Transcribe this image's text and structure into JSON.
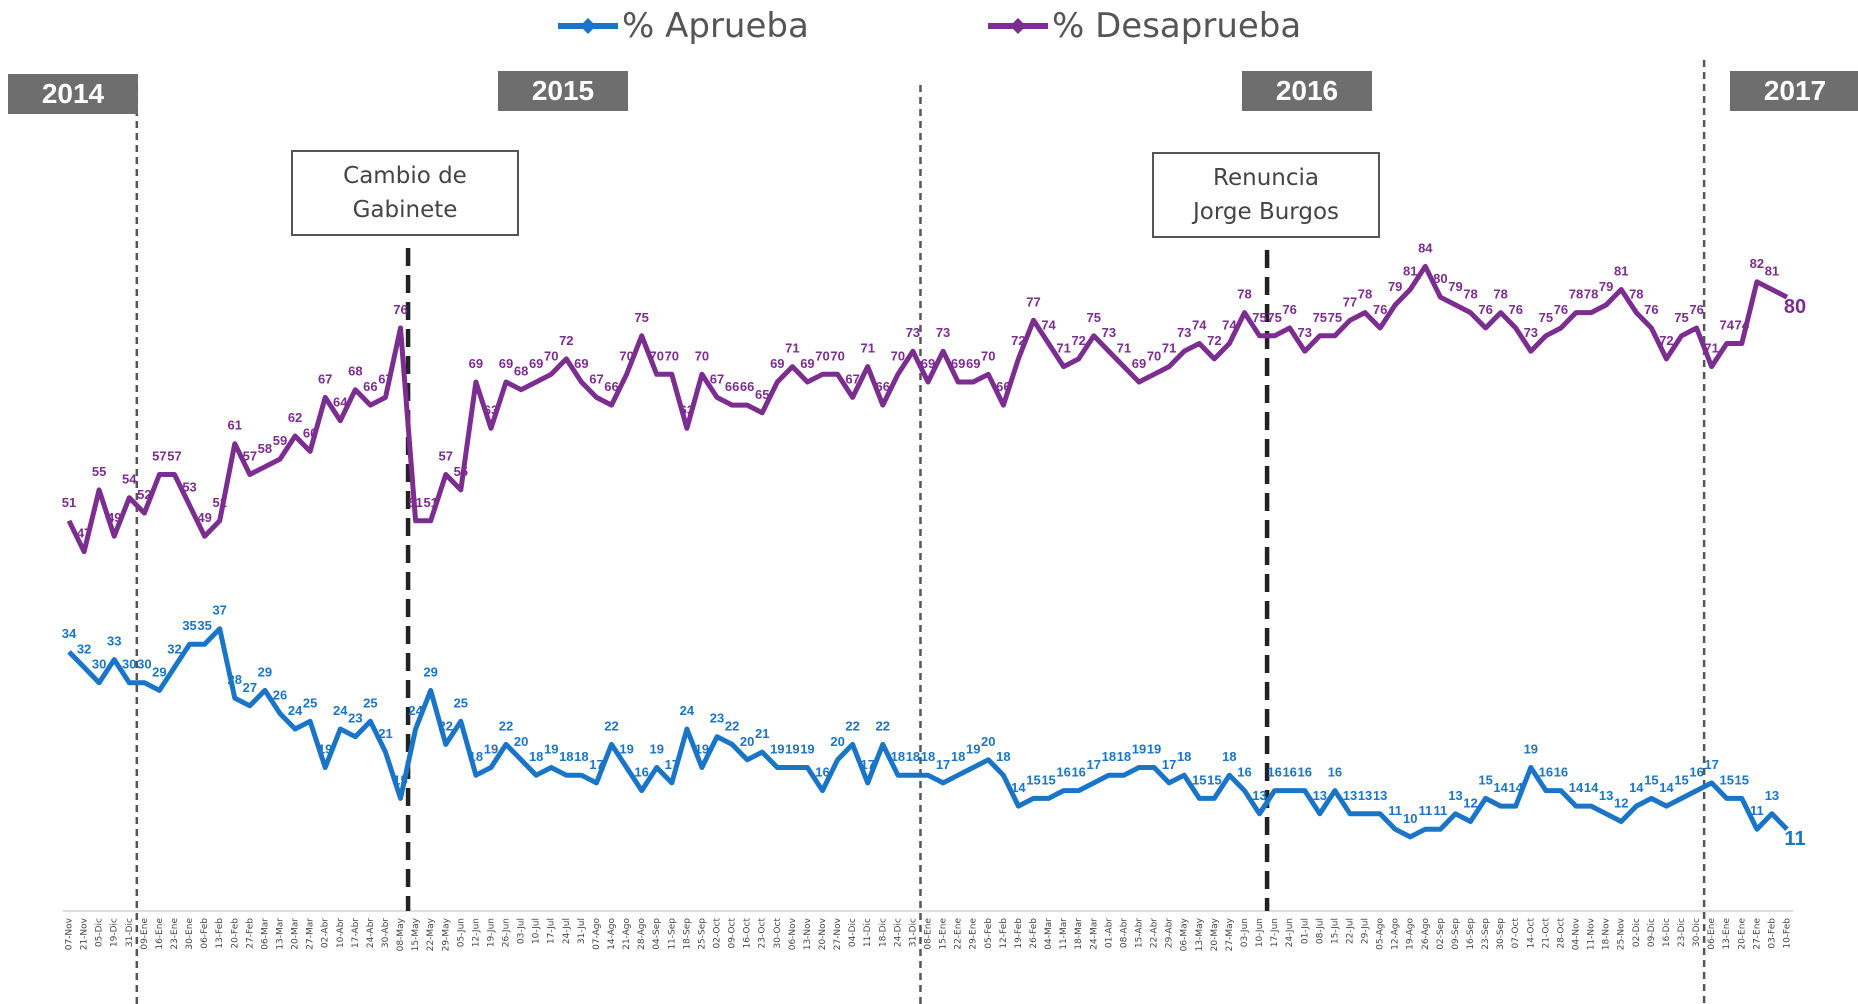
{
  "chart_data": {
    "type": "line",
    "categories": [
      "07-Nov",
      "21-Nov",
      "05-Dic",
      "19-Dic",
      "31-Dic",
      "09-Ene",
      "16-Ene",
      "23-Ene",
      "30-Ene",
      "06-Feb",
      "13-Feb",
      "20-Feb",
      "27-Feb",
      "06-Mar",
      "13-Mar",
      "20-Mar",
      "27-Mar",
      "02-Abr",
      "10-Abr",
      "17-Abr",
      "24-Abr",
      "30-Abr",
      "08-May",
      "15-May",
      "22-May",
      "29-May",
      "05-Jun",
      "12-Jun",
      "19-Jun",
      "26-Jun",
      "03-Jul",
      "10-Jul",
      "17-Jul",
      "24-Jul",
      "31-Jul",
      "07-Ago",
      "14-Ago",
      "21-Ago",
      "28-Ago",
      "04-Sep",
      "11-Sep",
      "18-Sep",
      "25-Sep",
      "02-Oct",
      "09-Oct",
      "16-Oct",
      "23-Oct",
      "30-Oct",
      "06-Nov",
      "13-Nov",
      "20-Nov",
      "27-Nov",
      "04-Dic",
      "11-Dic",
      "18-Dic",
      "24-Dic",
      "31-Dic",
      "08-Ene",
      "15-Ene",
      "22-Ene",
      "29-Ene",
      "05-Feb",
      "12-Feb",
      "19-Feb",
      "26-Feb",
      "04-Mar",
      "11-Mar",
      "18-Mar",
      "24-Mar",
      "01-Abr",
      "08-Abr",
      "15-Abr",
      "22-Abr",
      "29-Abr",
      "06-May",
      "13-May",
      "20-May",
      "27-May",
      "03-Jun",
      "10-Jun",
      "17-Jun",
      "24-Jun",
      "01-Jul",
      "08-Jul",
      "15-Jul",
      "22-Jul",
      "29-Jul",
      "05-Ago",
      "12-Ago",
      "19-Ago",
      "26-Ago",
      "02-Sep",
      "09-Sep",
      "16-Sep",
      "23-Sep",
      "30-Sep",
      "07-Oct",
      "14-Oct",
      "21-Oct",
      "28-Oct",
      "04-Nov",
      "11-Nov",
      "18-Nov",
      "25-Nov",
      "02-Dic",
      "09-Dic",
      "16-Dic",
      "23-Dic",
      "30-Dic",
      "06-Ene",
      "13-Ene",
      "20-Ene",
      "27-Ene",
      "03-Feb",
      "10-Feb"
    ],
    "series": [
      {
        "name": "% Aprueba",
        "color": "#1a75c7",
        "values": [
          34,
          32,
          30,
          33,
          30,
          30,
          29,
          32,
          35,
          35,
          37,
          28,
          27,
          29,
          26,
          24,
          25,
          19,
          24,
          23,
          25,
          21,
          15,
          24,
          29,
          22,
          25,
          18,
          19,
          22,
          20,
          18,
          19,
          18,
          18,
          17,
          22,
          19,
          16,
          19,
          17,
          24,
          19,
          23,
          22,
          20,
          21,
          19,
          19,
          19,
          16,
          20,
          22,
          17,
          22,
          18,
          18,
          18,
          17,
          18,
          19,
          20,
          18,
          14,
          15,
          15,
          16,
          16,
          17,
          18,
          18,
          19,
          19,
          17,
          18,
          15,
          15,
          18,
          16,
          13,
          16,
          16,
          16,
          13,
          16,
          13,
          13,
          13,
          11,
          10,
          11,
          11,
          13,
          12,
          15,
          14,
          14,
          19,
          16,
          16,
          14,
          14,
          13,
          12,
          14,
          15,
          14,
          15,
          16,
          17,
          15,
          15,
          11,
          13,
          11
        ]
      },
      {
        "name": "% Desaprueba",
        "color": "#7b2e8f",
        "values": [
          51,
          47,
          55,
          49,
          54,
          52,
          57,
          57,
          53,
          49,
          51,
          61,
          57,
          58,
          59,
          62,
          60,
          67,
          64,
          68,
          66,
          67,
          76,
          51,
          51,
          57,
          55,
          69,
          63,
          69,
          68,
          69,
          70,
          72,
          69,
          67,
          66,
          70,
          75,
          70,
          70,
          63,
          70,
          67,
          66,
          66,
          65,
          69,
          71,
          69,
          70,
          70,
          67,
          71,
          66,
          70,
          73,
          69,
          73,
          69,
          69,
          70,
          66,
          72,
          77,
          74,
          71,
          72,
          75,
          73,
          71,
          69,
          70,
          71,
          73,
          74,
          72,
          74,
          78,
          75,
          75,
          76,
          73,
          75,
          75,
          77,
          78,
          76,
          79,
          81,
          84,
          80,
          79,
          78,
          76,
          78,
          76,
          73,
          75,
          76,
          78,
          78,
          79,
          81,
          78,
          76,
          72,
          75,
          76,
          71,
          74,
          74,
          82,
          81,
          80
        ]
      }
    ],
    "ylim": [
      0,
      100
    ],
    "grid": false,
    "years": [
      "2014",
      "2015",
      "2016",
      "2017"
    ],
    "events": [
      "Cambio de Gabinete",
      "Renuncia Jorge Burgos"
    ]
  }
}
